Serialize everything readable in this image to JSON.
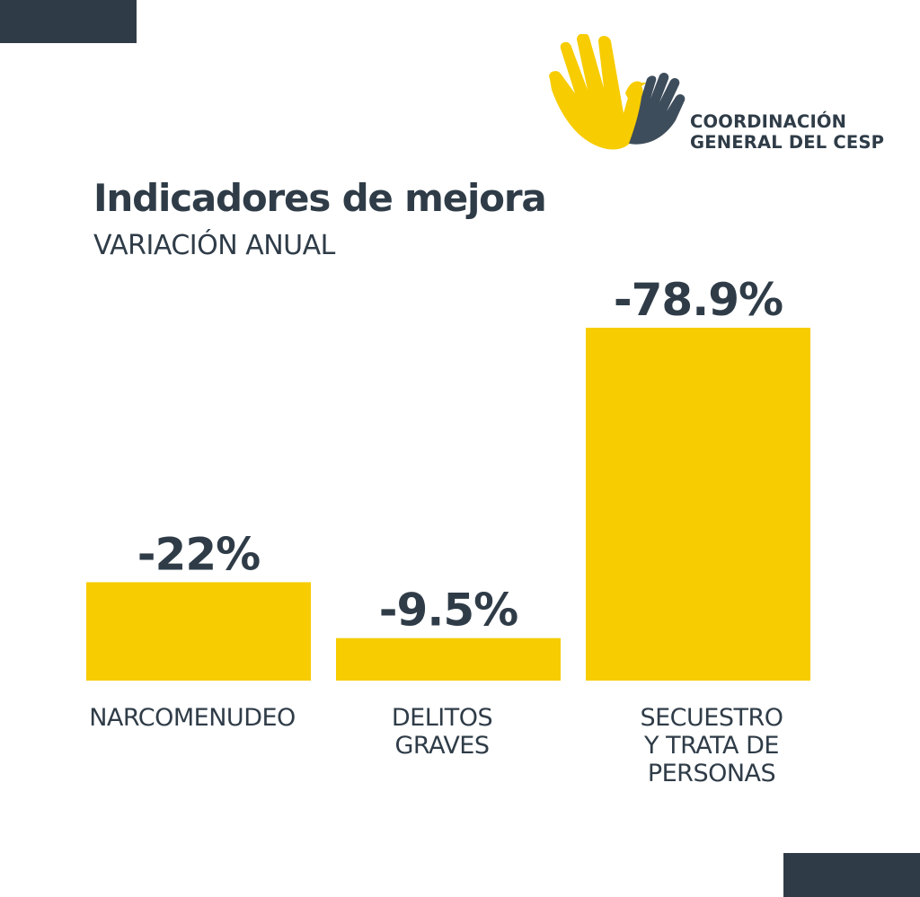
{
  "header": {
    "org_line1": "COORDINACIÓN",
    "org_line2": "GENERAL DEL CESP",
    "logo_icon": "hands-with-dove-icon"
  },
  "colors": {
    "bar": "#f7cc00",
    "text": "#2f3c48",
    "dark_block": "#2f3c48"
  },
  "chart_data": {
    "type": "bar",
    "title": "Indicadores de mejora",
    "subtitle": "VARIACIÓN ANUAL",
    "categories": [
      "NARCOMENUDEO",
      "DELITOS\nGRAVES",
      "SECUESTRO\nY TRATA DE\nPERSONAS"
    ],
    "values": [
      -22,
      -9.5,
      -78.9
    ],
    "value_labels": [
      "-22%",
      "-9.5%",
      "-78.9%"
    ],
    "xlabel": "",
    "ylabel": "",
    "grid": false,
    "legend": "none"
  }
}
